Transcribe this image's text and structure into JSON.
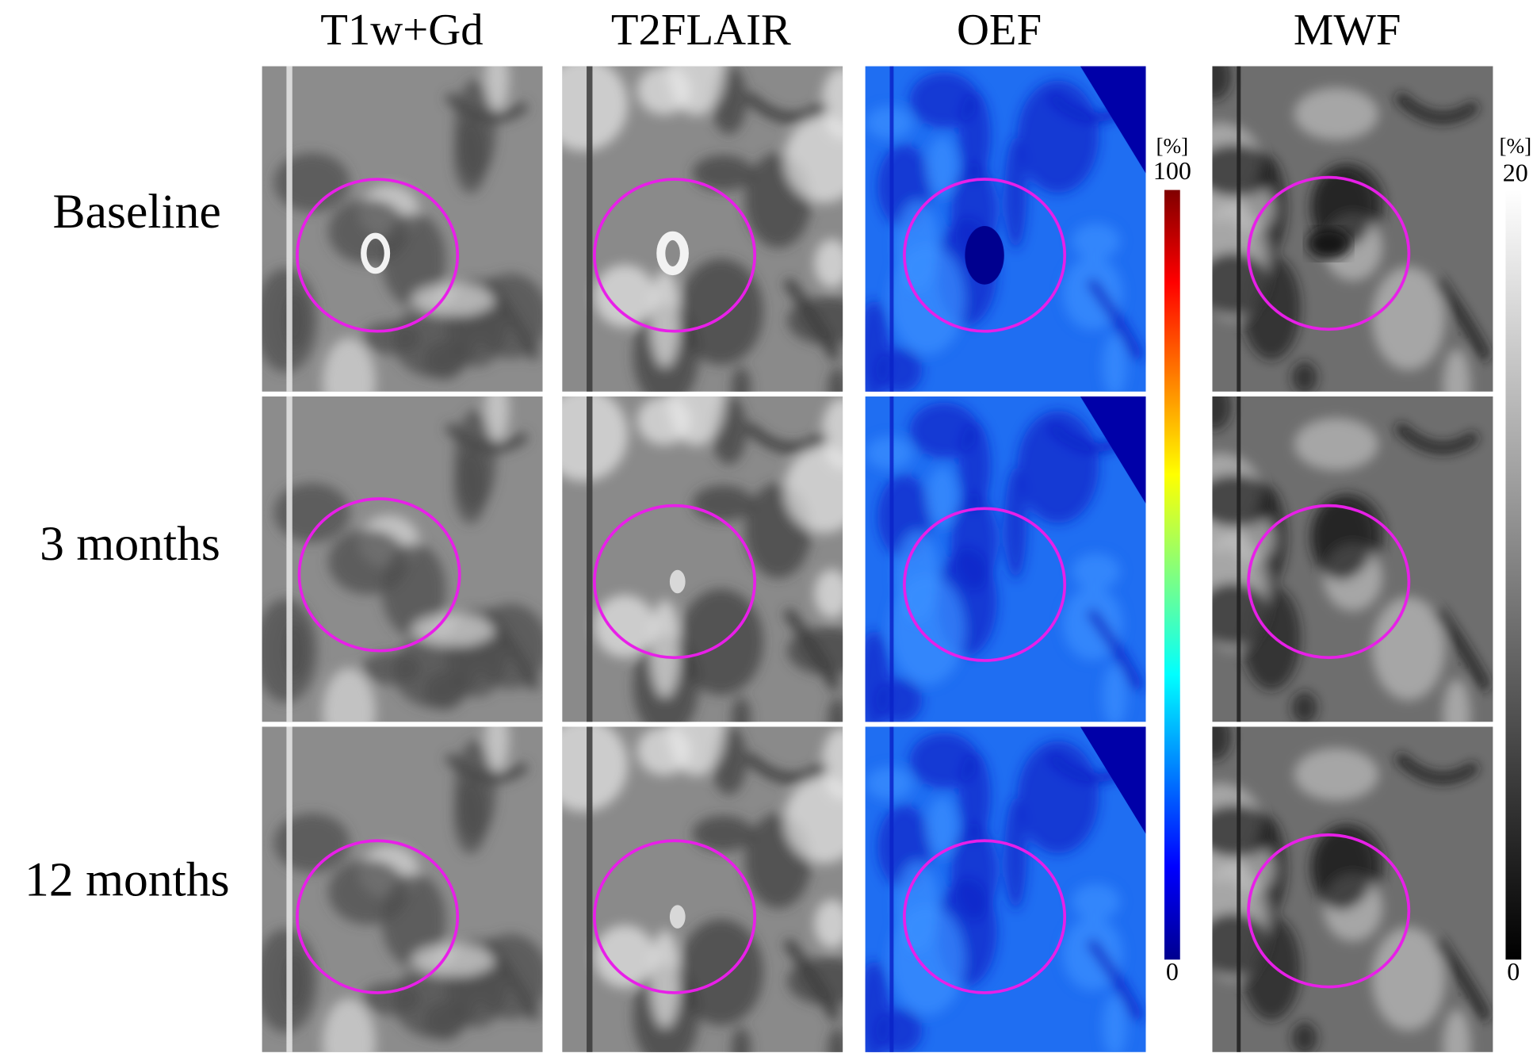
{
  "columns": [
    "T1w+Gd",
    "T2FLAIR",
    "OEF",
    "MWF"
  ],
  "rows": [
    "Baseline",
    "3 months",
    "12 months"
  ],
  "colorbars": {
    "oef": {
      "unit": "[%]",
      "max": "100",
      "min": "0"
    },
    "mwf": {
      "unit": "[%]",
      "max": "20",
      "min": "0"
    }
  }
}
